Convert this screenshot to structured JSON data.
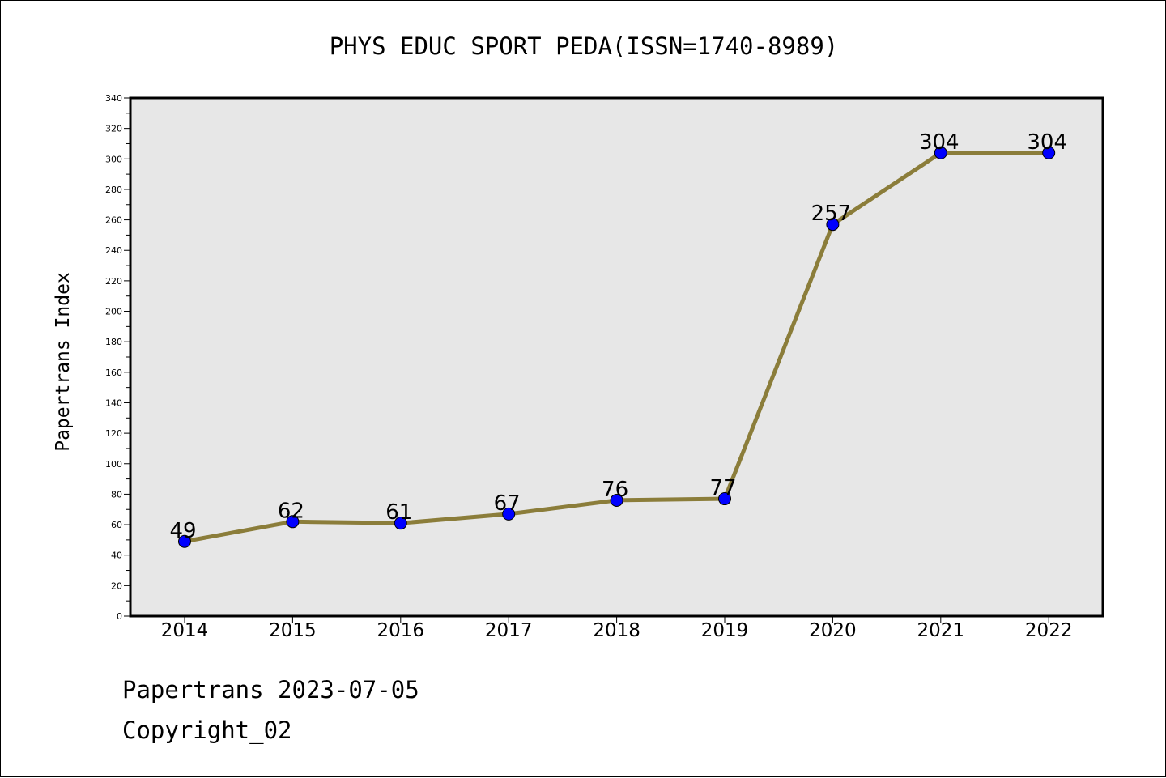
{
  "chart_data": {
    "type": "line",
    "title": "PHYS EDUC SPORT PEDA(ISSN=1740-8989)",
    "xlabel": "",
    "ylabel": "Papertrans Index",
    "categories": [
      "2014",
      "2015",
      "2016",
      "2017",
      "2018",
      "2019",
      "2020",
      "2021",
      "2022"
    ],
    "series": [
      {
        "values": [
          49,
          62,
          61,
          67,
          76,
          77,
          257,
          304,
          304
        ]
      }
    ],
    "ylim": [
      0,
      340
    ],
    "yticks": [
      0,
      20,
      40,
      60,
      80,
      100,
      120,
      140,
      160,
      180,
      200,
      220,
      240,
      260,
      280,
      300,
      320,
      340
    ],
    "grid": false,
    "data_labels": true,
    "colors": {
      "line": "#8b7d3a",
      "marker": "#0000ff",
      "plot_bg": "#e7e7e7"
    }
  },
  "footer": {
    "line1": "Papertrans 2023-07-05",
    "line2": "Copyright_02"
  }
}
